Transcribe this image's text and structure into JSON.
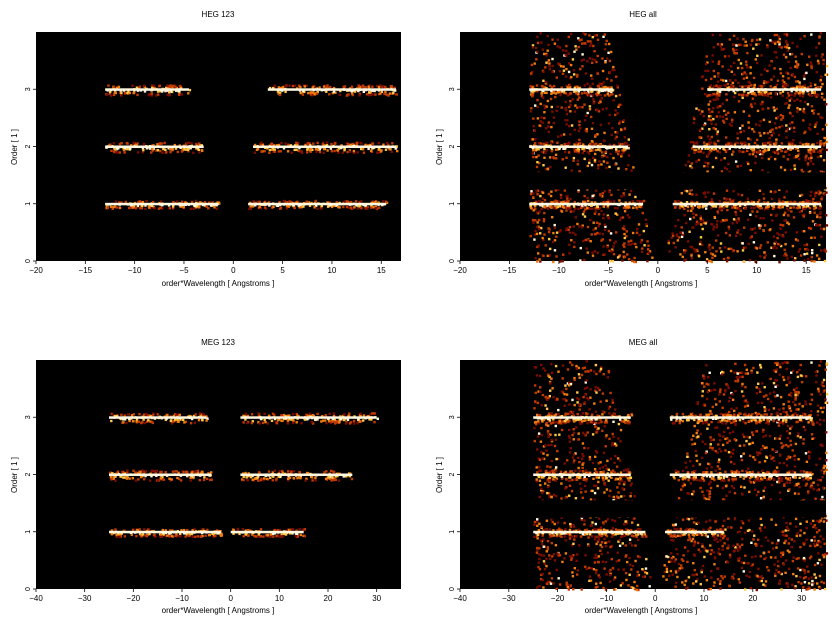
{
  "figure": {
    "panels": [
      {
        "title": "HEG 123",
        "xlabel": "order*Wavelength [ Angstroms ]",
        "ylabel": "Order [ 1 ]",
        "xticks": [
          -20,
          -15,
          -10,
          -5,
          0,
          5,
          10,
          15
        ],
        "yticks": [
          0,
          1,
          2,
          3
        ]
      },
      {
        "title": "HEG all",
        "xlabel": "order*Wavelength [ Angstroms ]",
        "ylabel": "Order [ 1 ]",
        "xticks": [
          -20,
          -15,
          -10,
          -5,
          0,
          5,
          10,
          15
        ],
        "yticks": [
          0,
          1,
          2,
          3
        ]
      },
      {
        "title": "MEG 123",
        "xlabel": "order*Wavelength [ Angstroms ]",
        "ylabel": "Order [ 1 ]",
        "xticks": [
          -40,
          -30,
          -20,
          -10,
          0,
          10,
          20,
          30
        ],
        "yticks": [
          0,
          1,
          2,
          3
        ]
      },
      {
        "title": "MEG all",
        "xlabel": "order*Wavelength [ Angstroms ]",
        "ylabel": "Order [ 1 ]",
        "xticks": [
          -40,
          -30,
          -20,
          -10,
          0,
          10,
          20,
          30
        ],
        "yticks": [
          0,
          1,
          2,
          3
        ]
      }
    ]
  },
  "chart_data": [
    {
      "type": "heatmap",
      "title": "HEG 123",
      "xlabel": "order*Wavelength [ Angstroms ]",
      "ylabel": "Order [ 1 ]",
      "xlim": [
        -20,
        17
      ],
      "ylim": [
        0,
        4
      ],
      "colormap": "black-red-orange-yellow-white",
      "background": "#000000",
      "bands": [
        {
          "order": 1,
          "x_ranges": [
            [
              -13,
              -1.5
            ],
            [
              1.5,
              15.5
            ]
          ]
        },
        {
          "order": 2,
          "x_ranges": [
            [
              -13,
              -3
            ],
            [
              2,
              16.5
            ]
          ]
        },
        {
          "order": 3,
          "x_ranges": [
            [
              -13,
              -4.5
            ],
            [
              3.5,
              16.5
            ]
          ]
        }
      ]
    },
    {
      "type": "heatmap",
      "title": "HEG all",
      "xlabel": "order*Wavelength [ Angstroms ]",
      "ylabel": "Order [ 1 ]",
      "xlim": [
        -20,
        17
      ],
      "ylim": [
        0,
        4
      ],
      "colormap": "black-red-orange-yellow-white",
      "background": "#000000",
      "bands": [
        {
          "order": 1,
          "x_ranges": [
            [
              -13,
              -1.5
            ],
            [
              1.5,
              16.5
            ]
          ]
        },
        {
          "order": 2,
          "x_ranges": [
            [
              -13,
              -3
            ],
            [
              3.5,
              16.5
            ]
          ]
        },
        {
          "order": 3,
          "x_ranges": [
            [
              -13,
              -4.5
            ],
            [
              5,
              16.5
            ]
          ]
        }
      ]
    },
    {
      "type": "heatmap",
      "title": "MEG 123",
      "xlabel": "order*Wavelength [ Angstroms ]",
      "ylabel": "Order [ 1 ]",
      "xlim": [
        -40,
        35
      ],
      "ylim": [
        0,
        4
      ],
      "colormap": "black-red-orange-yellow-white",
      "background": "#000000",
      "bands": [
        {
          "order": 1,
          "x_ranges": [
            [
              -25,
              -2
            ],
            [
              0,
              15
            ]
          ]
        },
        {
          "order": 2,
          "x_ranges": [
            [
              -25,
              -4
            ],
            [
              2,
              25
            ]
          ]
        },
        {
          "order": 3,
          "x_ranges": [
            [
              -25,
              -5
            ],
            [
              2,
              30
            ]
          ]
        }
      ]
    },
    {
      "type": "heatmap",
      "title": "MEG all",
      "xlabel": "order*Wavelength [ Angstroms ]",
      "ylabel": "Order [ 1 ]",
      "xlim": [
        -40,
        35
      ],
      "ylim": [
        0,
        4
      ],
      "colormap": "black-red-orange-yellow-white",
      "background": "#000000",
      "bands": [
        {
          "order": 1,
          "x_ranges": [
            [
              -25,
              -2
            ],
            [
              2,
              14
            ]
          ]
        },
        {
          "order": 2,
          "x_ranges": [
            [
              -25,
              -5
            ],
            [
              3,
              32
            ]
          ]
        },
        {
          "order": 3,
          "x_ranges": [
            [
              -25,
              -5
            ],
            [
              3,
              32
            ]
          ]
        }
      ]
    }
  ]
}
